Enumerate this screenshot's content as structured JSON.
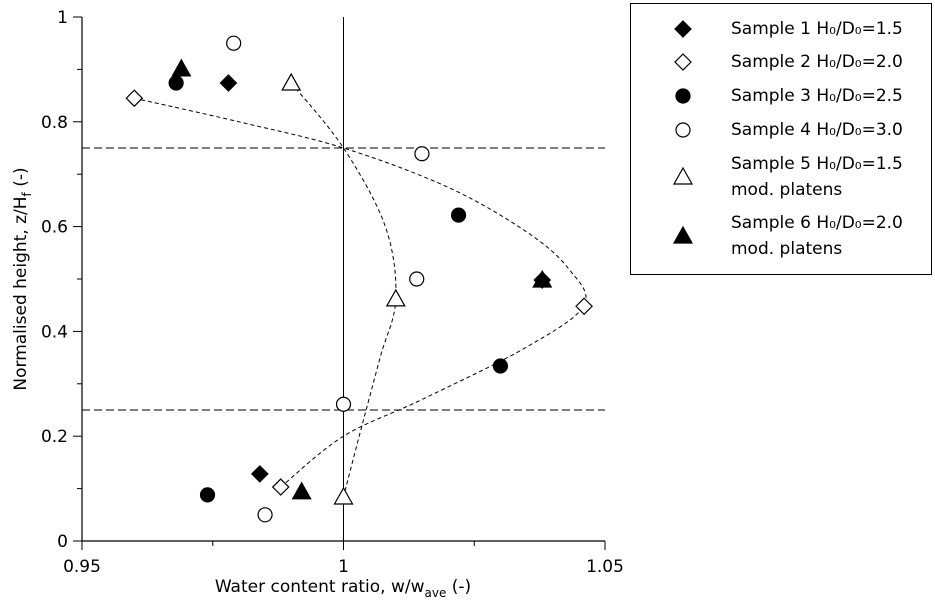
{
  "chart_data": {
    "type": "scatter",
    "xlabel": {
      "text": "Water content ratio, w/w",
      "sub": "ave",
      "after": " (-)"
    },
    "ylabel": {
      "text": "Normalised height, z/H",
      "sub": "f",
      "after": " (-)"
    },
    "xlim": [
      0.95,
      1.05
    ],
    "ylim": [
      0,
      1
    ],
    "xticks": [
      0.95,
      1,
      1.05
    ],
    "yticks": [
      0,
      0.2,
      0.4,
      0.6,
      0.8,
      1
    ],
    "xminorticks": [
      0.975,
      1.025
    ],
    "yminorticks": [
      0.1,
      0.3,
      0.5,
      0.7,
      0.9
    ],
    "hlines": [
      0.25,
      0.75
    ],
    "vline": 1,
    "legend": "outside-right",
    "series": [
      {
        "name": "Sample 1 H₀/D₀=1.5",
        "marker": "diamond",
        "filled": true,
        "color": "#000000",
        "x": [
          0.978,
          0.984,
          1.038
        ],
        "values": [
          0.874,
          0.128,
          0.498
        ]
      },
      {
        "name": "Sample 2 H₀/D₀=2.0",
        "marker": "diamond",
        "filled": false,
        "color": "#000000",
        "x": [
          0.96,
          0.988,
          1.046
        ],
        "values": [
          0.845,
          0.103,
          0.448
        ]
      },
      {
        "name": "Sample 3 H₀/D₀=2.5",
        "marker": "circle",
        "filled": true,
        "color": "#000000",
        "x": [
          0.968,
          0.974,
          1.022,
          1.03
        ],
        "values": [
          0.874,
          0.088,
          0.622,
          0.334
        ]
      },
      {
        "name": "Sample 4 H₀/D₀=3.0",
        "marker": "circle",
        "filled": false,
        "color": "#000000",
        "x": [
          0.979,
          1.015,
          1.014,
          1.0,
          0.985
        ],
        "values": [
          0.95,
          0.739,
          0.5,
          0.261,
          0.05
        ]
      },
      {
        "name": "Sample 5 H₀/D₀=1.5\nmod. platens",
        "marker": "triangle",
        "filled": false,
        "color": "#000000",
        "x": [
          0.99,
          1.01,
          1.0
        ],
        "values": [
          0.874,
          0.462,
          0.084
        ]
      },
      {
        "name": "Sample 6 H₀/D₀=2.0\nmod. platens",
        "marker": "triangle",
        "filled": true,
        "color": "#000000",
        "x": [
          0.969,
          1.038,
          0.992
        ],
        "values": [
          0.901,
          0.498,
          0.094
        ]
      }
    ],
    "curves": [
      {
        "x": [
          0.96,
          0.98,
          1.0,
          1.02,
          1.035,
          1.043,
          1.046,
          1.035,
          1.015,
          1.0,
          0.988
        ],
        "values": [
          0.845,
          0.8,
          0.75,
          0.675,
          0.59,
          0.52,
          0.45,
          0.37,
          0.27,
          0.2,
          0.103
        ]
      },
      {
        "x": [
          0.99,
          1.0,
          1.008,
          1.01,
          1.007,
          1.003,
          1.0
        ],
        "values": [
          0.874,
          0.75,
          0.6,
          0.462,
          0.35,
          0.2,
          0.084
        ]
      }
    ]
  }
}
